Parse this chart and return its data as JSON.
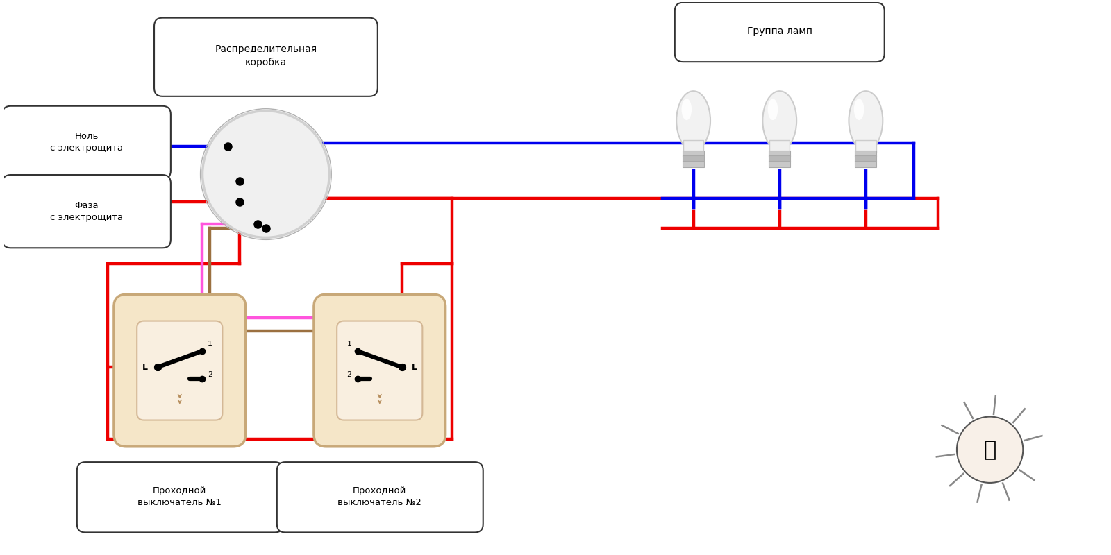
{
  "bg_color": "#ffffff",
  "wire_blue": "#0000ee",
  "wire_red": "#ee0000",
  "wire_pink": "#ff55dd",
  "wire_brown": "#9b7040",
  "switch_fill": "#f5e6c8",
  "switch_fill2": "#f9efe0",
  "switch_border": "#c8a878",
  "switch_border2": "#d4b896",
  "junction_box_label": "Распределительная\nкоробка",
  "lamp_group_label": "Группа ламп",
  "nol_label": "Ноль\nс электрощита",
  "faza_label": "Фаза\nс электрощита",
  "sw1_label": "Проходной\nвыключатель №1",
  "sw2_label": "Проходной\nвыключатель №2"
}
